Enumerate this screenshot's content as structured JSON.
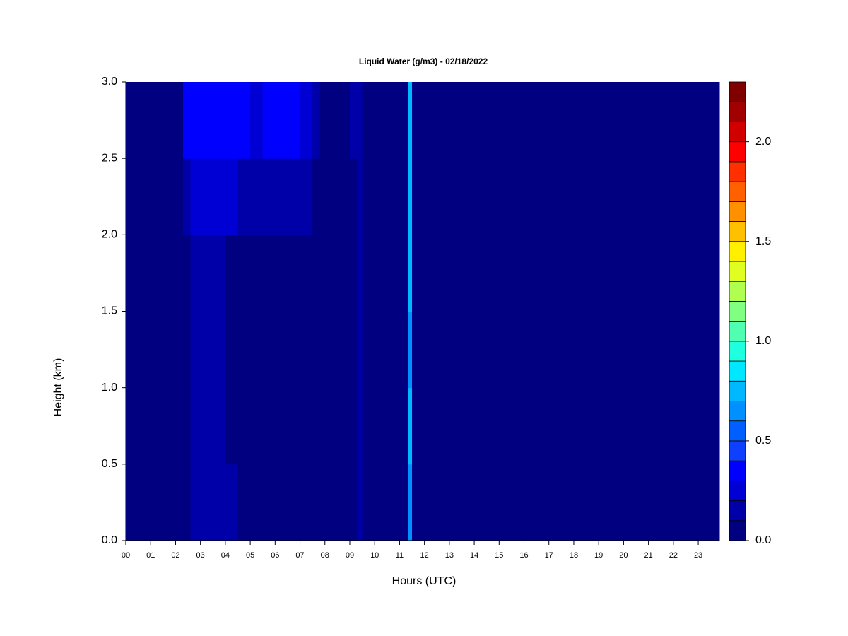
{
  "chart_data": {
    "type": "heatmap",
    "title": "Liquid Water (g/m3) - 02/18/2022",
    "x_label": "Hours (UTC)",
    "y_label": "Height (km)",
    "xlim": [
      0,
      23.85
    ],
    "ylim": [
      0,
      3
    ],
    "xticks": [
      {
        "value": 0,
        "label": "00"
      },
      {
        "value": 1,
        "label": "01"
      },
      {
        "value": 2,
        "label": "02"
      },
      {
        "value": 3,
        "label": "03"
      },
      {
        "value": 4,
        "label": "04"
      },
      {
        "value": 5,
        "label": "05"
      },
      {
        "value": 6,
        "label": "06"
      },
      {
        "value": 7,
        "label": "07"
      },
      {
        "value": 8,
        "label": "08"
      },
      {
        "value": 9,
        "label": "09"
      },
      10,
      11,
      12,
      13,
      14,
      15,
      16,
      17,
      18,
      19,
      20,
      21,
      22,
      23
    ],
    "yticks": [
      {
        "value": 0,
        "label": "0.0"
      },
      {
        "value": 0.5,
        "label": "0.5"
      },
      {
        "value": 1,
        "label": "1.0"
      },
      {
        "value": 1.5,
        "label": "1.5"
      },
      {
        "value": 2,
        "label": "2.0"
      },
      {
        "value": 2.5,
        "label": "2.5"
      },
      {
        "value": 3,
        "label": "3.0"
      }
    ],
    "x_edges": [
      0,
      2.3,
      2.6,
      2.8,
      3.0,
      3.5,
      4.0,
      4.5,
      5.0,
      5.5,
      6.0,
      6.5,
      7.0,
      7.5,
      7.8,
      9.0,
      9.3,
      9.5,
      11.35,
      11.5,
      23.85
    ],
    "y_edges": [
      0,
      0.5,
      1,
      1.5,
      2,
      2.5,
      3
    ],
    "z": [
      [
        0.05,
        0.05,
        0.15,
        0.1,
        0.12,
        0.1,
        0.1,
        0.05,
        0.05,
        0.05,
        0.08,
        0.05,
        0.05,
        0.05,
        0.05,
        0.08,
        0.1,
        0.05,
        0.6,
        0.05
      ],
      [
        0.05,
        0.05,
        0.15,
        0.1,
        0.1,
        0.1,
        0.08,
        0.05,
        0.05,
        0.05,
        0.08,
        0.05,
        0.05,
        0.05,
        0.05,
        0.08,
        0.1,
        0.05,
        0.7,
        0.05
      ],
      [
        0.05,
        0.05,
        0.15,
        0.1,
        0.1,
        0.1,
        0.08,
        0.05,
        0.05,
        0.05,
        0.08,
        0.05,
        0.05,
        0.05,
        0.05,
        0.08,
        0.1,
        0.05,
        0.6,
        0.05
      ],
      [
        0.05,
        0.05,
        0.15,
        0.12,
        0.1,
        0.1,
        0.08,
        0.05,
        0.05,
        0.05,
        0.08,
        0.05,
        0.05,
        0.05,
        0.05,
        0.08,
        0.1,
        0.05,
        0.7,
        0.05
      ],
      [
        0.05,
        0.15,
        0.25,
        0.2,
        0.2,
        0.2,
        0.2,
        0.15,
        0.15,
        0.15,
        0.15,
        0.12,
        0.1,
        0.05,
        0.05,
        0.08,
        0.1,
        0.05,
        0.7,
        0.05
      ],
      [
        0.05,
        0.35,
        0.35,
        0.3,
        0.3,
        0.3,
        0.3,
        0.3,
        0.25,
        0.3,
        0.3,
        0.3,
        0.25,
        0.15,
        0.05,
        0.1,
        0.1,
        0.05,
        0.75,
        0.05
      ]
    ],
    "levels": [
      0,
      0.1,
      0.2,
      0.3,
      0.4,
      0.5,
      0.6,
      0.7,
      0.8,
      0.9,
      1.0,
      1.1,
      1.2,
      1.3,
      1.4,
      1.5,
      1.6,
      1.7,
      1.8,
      1.9,
      2.0,
      2.1,
      2.2,
      2.3
    ],
    "colors": [
      "#000080",
      "#0000a8",
      "#0000d4",
      "#0000ff",
      "#1040ff",
      "#0060ff",
      "#0090ff",
      "#00b8ff",
      "#00e8ff",
      "#20ffe0",
      "#50ffb0",
      "#80ff80",
      "#b0ff50",
      "#e0ff20",
      "#fff000",
      "#ffc000",
      "#ff9000",
      "#ff6000",
      "#ff3000",
      "#ff0000",
      "#d00000",
      "#a00000",
      "#800000"
    ],
    "colorbar_ticks": [
      {
        "value": 0,
        "label": "0.0"
      },
      {
        "value": 0.5,
        "label": "0.5"
      },
      {
        "value": 1,
        "label": "1.0"
      },
      {
        "value": 1.5,
        "label": "1.5"
      },
      {
        "value": 2,
        "label": "2.0"
      }
    ]
  }
}
